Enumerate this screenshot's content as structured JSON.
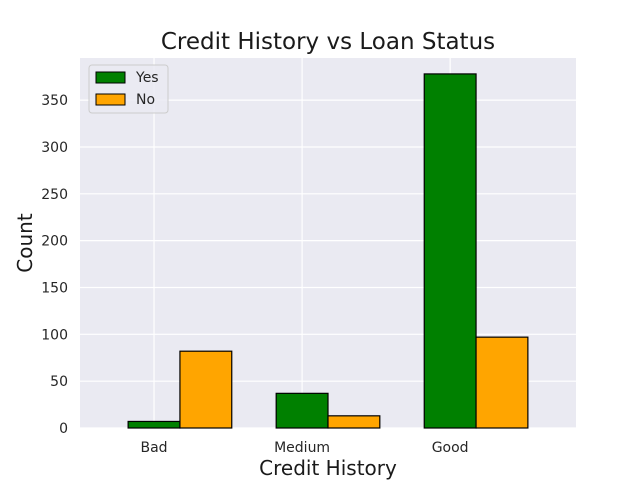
{
  "chart_data": {
    "type": "bar",
    "title": "Credit History vs Loan Status",
    "xlabel": "Credit History",
    "ylabel": "Count",
    "categories": [
      "Bad",
      "Medium",
      "Good"
    ],
    "series": [
      {
        "name": "Yes",
        "values": [
          7,
          37,
          378
        ],
        "color": "#008000"
      },
      {
        "name": "No",
        "values": [
          82,
          13,
          97
        ],
        "color": "#ffa500"
      }
    ],
    "ylim": [
      0,
      395
    ],
    "yticks": [
      0,
      50,
      100,
      150,
      200,
      250,
      300,
      350
    ],
    "grid": true,
    "legend_position": "top-left",
    "background_color": "#eaeaf2",
    "grid_color": "#ffffff",
    "edge_color": "#000000"
  }
}
